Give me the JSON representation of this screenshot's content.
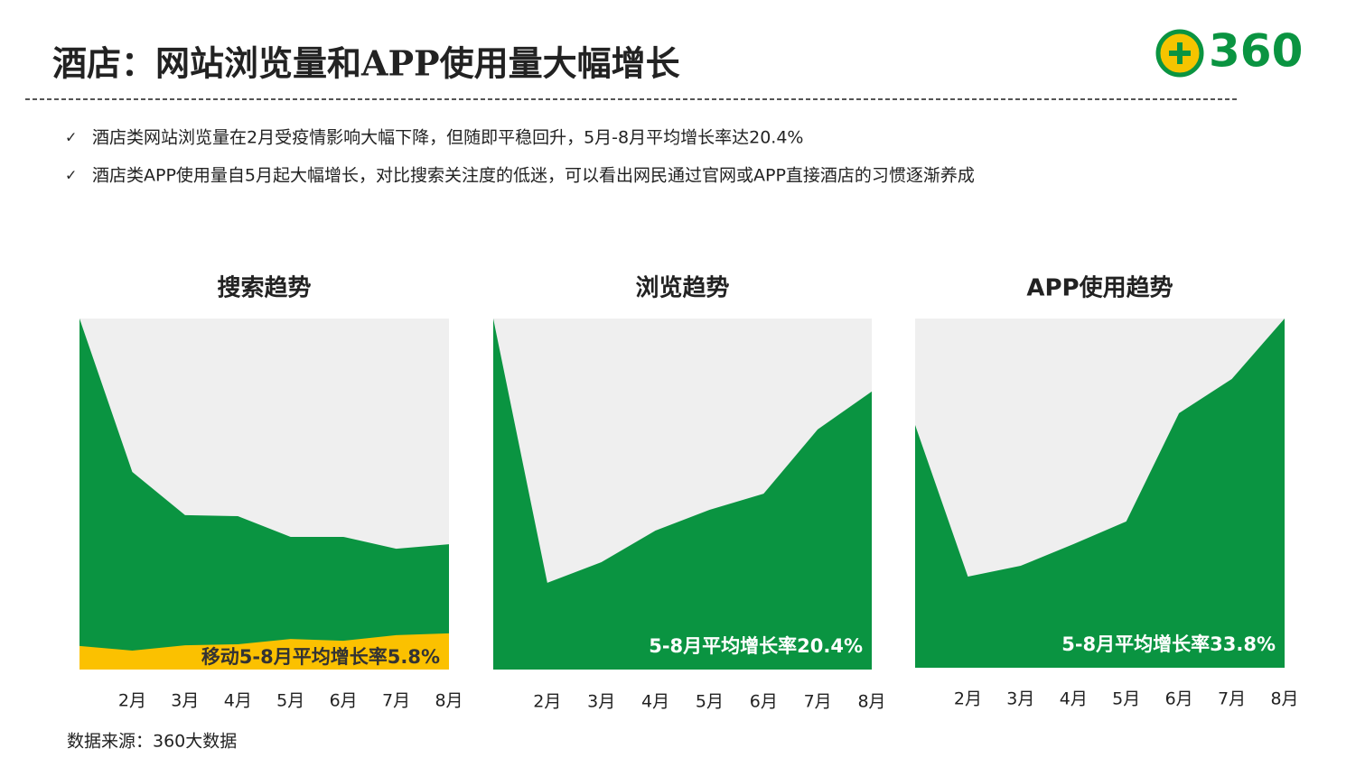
{
  "title": "酒店：网站浏览量和APP使用量大幅增长",
  "logo": "360",
  "bullets": [
    "酒店类网站浏览量在2月受疫情影响大幅下降，但随即平稳回升，5月-8月平均增长率达20.4%",
    "酒店类APP使用量自5月起大幅增长，对比搜索关注度的低迷，可以看出网民通过官网或APP直接酒店的习惯逐渐养成"
  ],
  "source": "数据来源：360大数据",
  "chart_data": [
    {
      "type": "area",
      "title": "搜索趋势",
      "categories": [
        null,
        "2月",
        "3月",
        "4月",
        "5月",
        "6月",
        "7月",
        "8月"
      ],
      "ylim": [
        0,
        100
      ],
      "series": [
        {
          "color": "#0a9441",
          "values": [
            100,
            56.3,
            44,
            43.7,
            37.8,
            37.8,
            34.4,
            35.7
          ]
        },
        {
          "color": "#fbc100",
          "values": [
            6.7,
            5.4,
            6.9,
            7.2,
            8.7,
            8.2,
            9.8,
            10.3
          ]
        }
      ],
      "annotation": "移动5-8月平均增长率5.8%"
    },
    {
      "type": "area",
      "title": "浏览趋势",
      "categories": [
        null,
        "2月",
        "3月",
        "4月",
        "5月",
        "6月",
        "7月",
        "8月"
      ],
      "ylim": [
        0,
        100
      ],
      "series": [
        {
          "color": "#0a9441",
          "values": [
            100,
            24.7,
            30.6,
            39.6,
            45.5,
            50.1,
            68.4,
            79.2
          ]
        }
      ],
      "annotation": "5-8月平均增长率20.4%"
    },
    {
      "type": "area",
      "title": "APP使用趋势",
      "categories": [
        null,
        "2月",
        "3月",
        "4月",
        "5月",
        "6月",
        "7月",
        "8月"
      ],
      "ylim": [
        0,
        100
      ],
      "series": [
        {
          "color": "#0a9441",
          "values": [
            69.5,
            26.1,
            29.2,
            35.4,
            41.9,
            72.9,
            82.7,
            100
          ]
        }
      ],
      "annotation": "5-8月平均增长率33.8%"
    }
  ]
}
